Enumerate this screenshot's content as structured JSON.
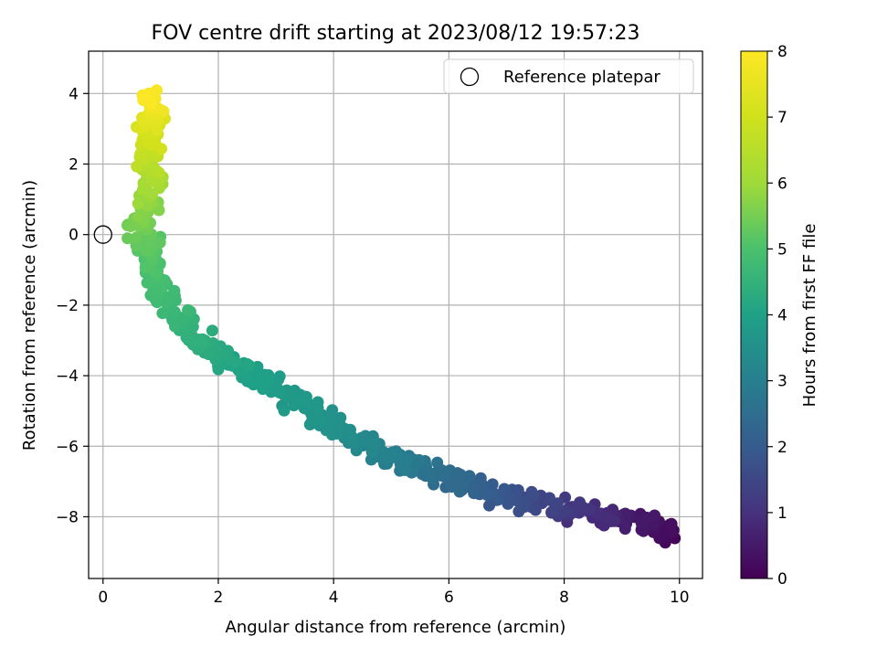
{
  "chart_data": {
    "type": "scatter",
    "title": "FOV centre drift starting at 2023/08/12 19:57:23",
    "xlabel": "Angular distance from reference (arcmin)",
    "ylabel": "Rotation from reference (arcmin)",
    "xlim": [
      -0.25,
      10.4
    ],
    "ylim": [
      -9.75,
      5.2
    ],
    "xticks": [
      0,
      2,
      4,
      6,
      8,
      10
    ],
    "yticks": [
      -8,
      -6,
      -4,
      -2,
      0,
      2,
      4
    ],
    "xtick_labels": [
      "0",
      "2",
      "4",
      "6",
      "8",
      "10"
    ],
    "ytick_labels": [
      "−8",
      "−6",
      "−4",
      "−2",
      "0",
      "2",
      "4"
    ],
    "grid": true,
    "colormap": "viridis",
    "colorbar": {
      "label": "Hours from first FF file",
      "range": [
        0,
        8
      ],
      "ticks": [
        0,
        1,
        2,
        3,
        4,
        5,
        6,
        7,
        8
      ],
      "tick_labels": [
        "0",
        "1",
        "2",
        "3",
        "4",
        "5",
        "6",
        "7",
        "8"
      ]
    },
    "legend": {
      "position": "top-right",
      "entries": [
        "Reference platepar"
      ]
    },
    "reference_point": [
      0,
      0
    ],
    "point_count": 720,
    "track": [
      [
        9.9,
        -8.5,
        0.0
      ],
      [
        9.6,
        -8.3,
        0.3
      ],
      [
        9.0,
        -8.1,
        0.6
      ],
      [
        8.5,
        -7.9,
        0.9
      ],
      [
        8.0,
        -7.8,
        1.2
      ],
      [
        7.5,
        -7.6,
        1.5
      ],
      [
        7.0,
        -7.4,
        1.8
      ],
      [
        6.5,
        -7.2,
        2.1
      ],
      [
        6.0,
        -6.9,
        2.4
      ],
      [
        5.5,
        -6.6,
        2.7
      ],
      [
        5.0,
        -6.3,
        3.0
      ],
      [
        4.5,
        -5.9,
        3.25
      ],
      [
        4.0,
        -5.4,
        3.5
      ],
      [
        3.5,
        -4.9,
        3.7
      ],
      [
        3.0,
        -4.4,
        3.85
      ],
      [
        2.5,
        -3.9,
        4.0
      ],
      [
        2.0,
        -3.4,
        4.2
      ],
      [
        1.6,
        -2.9,
        4.4
      ],
      [
        1.3,
        -2.3,
        4.6
      ],
      [
        1.0,
        -1.6,
        4.8
      ],
      [
        0.8,
        -0.8,
        5.0
      ],
      [
        0.7,
        0.0,
        5.3
      ],
      [
        0.7,
        0.8,
        5.7
      ],
      [
        0.8,
        1.6,
        6.2
      ],
      [
        0.8,
        2.4,
        6.7
      ],
      [
        0.85,
        3.2,
        7.3
      ],
      [
        0.9,
        4.0,
        8.0
      ]
    ]
  }
}
